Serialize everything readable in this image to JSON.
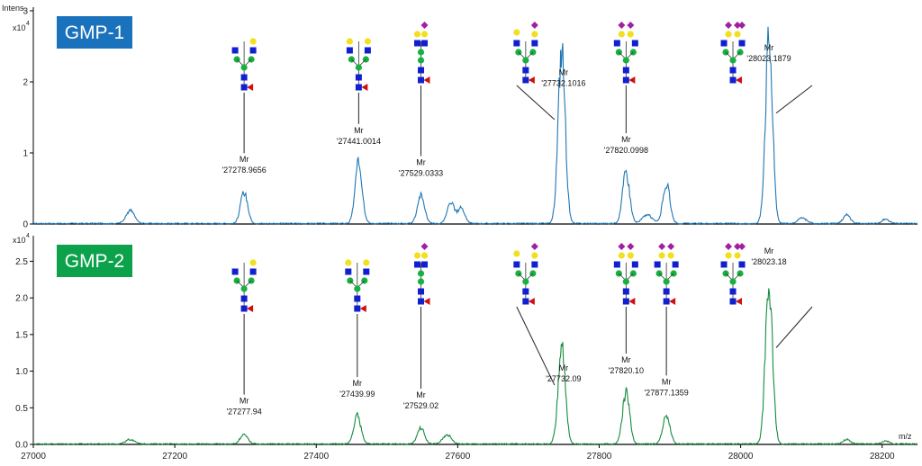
{
  "chart_data": [
    {
      "type": "line",
      "badge": "GMP-1",
      "badge_color": "#1a72bc",
      "line_color": "#1f77b4",
      "y_label": "Intens.",
      "y_exponent_base": "x10",
      "y_exponent_power": "4",
      "xlim": [
        27000,
        28250
      ],
      "ylim": [
        0,
        3.0
      ],
      "y_ticks": [
        0,
        1,
        2,
        3
      ],
      "y_tick_labels": [
        "0",
        "1",
        "2",
        "3"
      ],
      "peaks": [
        {
          "x": 27137,
          "y": 0.18,
          "w": 6
        },
        {
          "x": 27298,
          "y": 0.44,
          "w": 5
        },
        {
          "x": 27460,
          "y": 0.85,
          "w": 5
        },
        {
          "x": 27548,
          "y": 0.4,
          "w": 5
        },
        {
          "x": 27590,
          "y": 0.3,
          "w": 5
        },
        {
          "x": 27605,
          "y": 0.22,
          "w": 5
        },
        {
          "x": 27747,
          "y": 2.45,
          "w": 5
        },
        {
          "x": 27838,
          "y": 0.72,
          "w": 5
        },
        {
          "x": 27868,
          "y": 0.12,
          "w": 7
        },
        {
          "x": 27895,
          "y": 0.55,
          "w": 5
        },
        {
          "x": 28040,
          "y": 2.6,
          "w": 5
        },
        {
          "x": 28087,
          "y": 0.08,
          "w": 6
        },
        {
          "x": 28150,
          "y": 0.12,
          "w": 5
        },
        {
          "x": 28205,
          "y": 0.06,
          "w": 5
        }
      ],
      "annotations": [
        {
          "label": "Mr",
          "value": "27278.9656",
          "peak_x": 27298,
          "glycan": "sialyl-lactosamine"
        },
        {
          "label": "Mr",
          "value": "27441.0014",
          "peak_x": 27460,
          "glycan": "biantennary-galactose"
        },
        {
          "label": "Mr",
          "value": "27529.0333",
          "peak_x": 27548,
          "glycan": "sialyl-lactosamine-bisect"
        },
        {
          "label": "Mr",
          "value": "27732.1016",
          "peak_x": 27747,
          "glycan": "mono-sialylated-biantennary"
        },
        {
          "label": "Mr",
          "value": "27820.0998",
          "peak_x": 27838,
          "glycan": "di-sialylated"
        },
        {
          "label": "Mr",
          "value": "28023.1879",
          "peak_x": 28040,
          "glycan": "di-sialylated-biantennary"
        }
      ]
    },
    {
      "type": "line",
      "badge": "GMP-2",
      "badge_color": "#0ca24b",
      "line_color": "#158c3e",
      "y_label": "",
      "y_exponent_base": "x10",
      "y_exponent_power": "4",
      "xlim": [
        27000,
        28250
      ],
      "ylim": [
        0,
        2.8
      ],
      "y_ticks": [
        0,
        0.5,
        1.0,
        1.5,
        2.0,
        2.5
      ],
      "y_tick_labels": [
        "0.0",
        "0.5",
        "1.0",
        "1.5",
        "2.0",
        "2.5"
      ],
      "x_ticks": [
        27000,
        27200,
        27400,
        27600,
        27800,
        28000,
        28200
      ],
      "x_unit": "m/z",
      "peaks": [
        {
          "x": 27137,
          "y": 0.06,
          "w": 6
        },
        {
          "x": 27298,
          "y": 0.14,
          "w": 5
        },
        {
          "x": 27458,
          "y": 0.38,
          "w": 5
        },
        {
          "x": 27548,
          "y": 0.22,
          "w": 5
        },
        {
          "x": 27585,
          "y": 0.12,
          "w": 6
        },
        {
          "x": 27747,
          "y": 1.35,
          "w": 5
        },
        {
          "x": 27838,
          "y": 0.7,
          "w": 5
        },
        {
          "x": 27895,
          "y": 0.4,
          "w": 5
        },
        {
          "x": 28040,
          "y": 2.2,
          "w": 5
        },
        {
          "x": 28150,
          "y": 0.06,
          "w": 5
        },
        {
          "x": 28205,
          "y": 0.04,
          "w": 5
        }
      ],
      "annotations": [
        {
          "label": "Mr",
          "value": "27277.94",
          "peak_x": 27298,
          "glycan": "sialyl-lactosamine"
        },
        {
          "label": "Mr",
          "value": "27439.99",
          "peak_x": 27458,
          "glycan": "biantennary-galactose"
        },
        {
          "label": "Mr",
          "value": "27529.02",
          "peak_x": 27548,
          "glycan": "sialyl-lactosamine-bisect"
        },
        {
          "label": "Mr",
          "value": "27732.09",
          "peak_x": 27747,
          "glycan": "mono-sialylated-biantennary"
        },
        {
          "label": "Mr",
          "value": "27820.10",
          "peak_x": 27838,
          "glycan": "di-sialylated"
        },
        {
          "label": "Mr",
          "value": "27877.1359",
          "peak_x": 27895,
          "glycan": "di-sialylated"
        },
        {
          "label": "Mr",
          "value": "28023.18",
          "peak_x": 28040,
          "glycan": "di-sialylated-biantennary"
        }
      ]
    }
  ],
  "colors": {
    "axis": "#000000",
    "glcnac": "#1020d0",
    "mannose": "#18b040",
    "galactose": "#f2e020",
    "sialic_acid": "#a020a0",
    "fucose": "#d01010"
  }
}
